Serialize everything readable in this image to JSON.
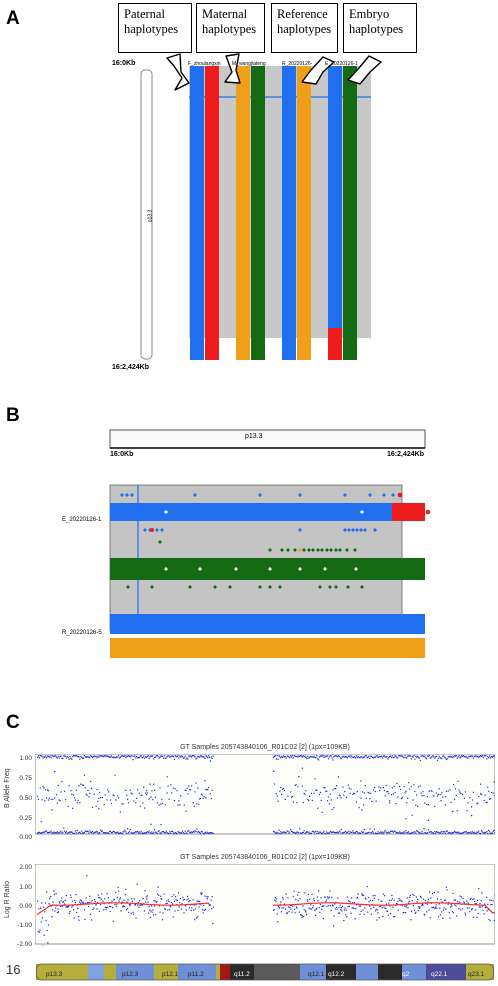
{
  "panels": {
    "a_label": "A",
    "b_label": "B",
    "c_label": "C"
  },
  "panel_a": {
    "callouts": [
      "Paternal haplotypes",
      "Maternal haplotypes",
      "Reference haplotypes",
      "Embryo haplotypes"
    ],
    "track_labels": [
      "F_zhoulangxin",
      "M_wangjiateng",
      "R_20220126-",
      "E_20220126-1"
    ],
    "chrom_top": "16:0Kb",
    "chrom_bottom": "16:2,424Kb",
    "chrom_band": "p13.3",
    "colors": {
      "blue": "#1f6ff0",
      "red": "#ee1c1c",
      "orange": "#f0a018",
      "green": "#146b14",
      "gray": "#c8c8c8"
    }
  },
  "panel_b": {
    "band": "p13.3",
    "left_coord": "16:0Kb",
    "right_coord": "16:2,424Kb",
    "sample_e": "E_20220126-1",
    "sample_r": "R_20220126-5"
  },
  "panel_c": {
    "baf_title": "GT Samples 205743840106_R01C02 [2]  (1px=109KB)",
    "lrr_title": "GT Samples 205743840106_R01C02 [2]  (1px=109KB)",
    "baf_ylabel": "B Allele Freq",
    "lrr_ylabel": "Log R Ratio",
    "baf_ticks": [
      "1.00",
      "0.75",
      "0.50",
      "0.25",
      "0.00"
    ],
    "lrr_ticks": [
      "2.00",
      "1.00",
      "0.00",
      "-1.00",
      "-2.00"
    ],
    "chrom_num": "16",
    "ideogram_bands": [
      "p13.3",
      "p12.3",
      "p12.1",
      "p11.2",
      "q11.2",
      "q12.1",
      "q12.2",
      "q2",
      "q22.1",
      "q23.1"
    ]
  }
}
